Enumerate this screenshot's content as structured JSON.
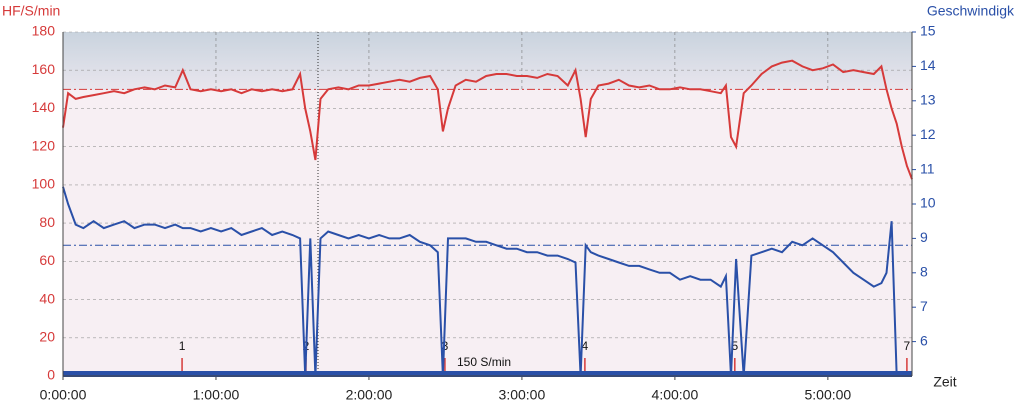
{
  "chart_data": {
    "type": "line",
    "y_label": "HF/S/min",
    "y2_label": "Geschwindigk",
    "x_label": "Zeit",
    "xlim": [
      0,
      333
    ],
    "xticks": [
      {
        "value": 0,
        "label": "0:00:00"
      },
      {
        "value": 60,
        "label": "1:00:00"
      },
      {
        "value": 120,
        "label": "2:00:00"
      },
      {
        "value": 180,
        "label": "3:00:00"
      },
      {
        "value": 240,
        "label": "4:00:00"
      },
      {
        "value": 300,
        "label": "5:00:00"
      }
    ],
    "ylim": [
      0,
      180
    ],
    "yticks": [
      0,
      20,
      40,
      60,
      80,
      100,
      120,
      140,
      160,
      180
    ],
    "y2lim": [
      5,
      15
    ],
    "y2ticks": [
      6,
      7,
      8,
      9,
      10,
      11,
      12,
      13,
      14,
      15
    ],
    "grid": true,
    "x": [
      0,
      2,
      5,
      8,
      12,
      16,
      20,
      24,
      28,
      32,
      36,
      40,
      44,
      47,
      50,
      54,
      58,
      62,
      66,
      70,
      74,
      78,
      82,
      86,
      90,
      93,
      95,
      97,
      99,
      101,
      104,
      108,
      112,
      116,
      120,
      124,
      128,
      132,
      136,
      140,
      144,
      147,
      149,
      151,
      154,
      158,
      162,
      166,
      170,
      174,
      178,
      182,
      186,
      190,
      194,
      198,
      201,
      203,
      205,
      207,
      210,
      214,
      218,
      222,
      226,
      230,
      234,
      238,
      242,
      246,
      250,
      254,
      258,
      260,
      262,
      264,
      267,
      270,
      274,
      278,
      282,
      286,
      290,
      294,
      298,
      302,
      306,
      310,
      314,
      318,
      321,
      323,
      325,
      327,
      329,
      331,
      333
    ],
    "series": [
      {
        "name": "HF",
        "color": "#d63a3a",
        "values": [
          130,
          148,
          145,
          146,
          147,
          148,
          149,
          148,
          150,
          151,
          150,
          152,
          151,
          160,
          150,
          149,
          150,
          149,
          150,
          148,
          150,
          149,
          150,
          149,
          150,
          158,
          140,
          128,
          113,
          145,
          150,
          151,
          150,
          152,
          152,
          153,
          154,
          155,
          154,
          156,
          157,
          150,
          128,
          140,
          152,
          155,
          154,
          157,
          158,
          158,
          157,
          157,
          156,
          158,
          157,
          152,
          160,
          145,
          125,
          145,
          152,
          153,
          155,
          152,
          151,
          152,
          150,
          150,
          151,
          150,
          150,
          149,
          148,
          152,
          125,
          120,
          148,
          152,
          158,
          162,
          164,
          165,
          162,
          160,
          161,
          163,
          159,
          160,
          159,
          158,
          162,
          150,
          140,
          132,
          120,
          110,
          103
        ]
      },
      {
        "name": "Geschwindigkeit",
        "color": "#2a50a8",
        "axis": "y2",
        "values": [
          10.5,
          10,
          9.4,
          9.3,
          9.5,
          9.3,
          9.4,
          9.5,
          9.3,
          9.4,
          9.4,
          9.3,
          9.4,
          9.3,
          9.3,
          9.2,
          9.3,
          9.2,
          9.3,
          9.1,
          9.2,
          9.3,
          9.1,
          9.2,
          9.1,
          9.0,
          5.0,
          9.0,
          5.0,
          9.0,
          9.2,
          9.1,
          9.0,
          9.1,
          9.0,
          9.1,
          9.0,
          9.0,
          9.1,
          8.9,
          8.8,
          8.6,
          5.0,
          9.0,
          9.0,
          9.0,
          8.9,
          8.9,
          8.8,
          8.7,
          8.7,
          8.6,
          8.6,
          8.5,
          8.5,
          8.4,
          8.3,
          5.0,
          8.8,
          8.6,
          8.5,
          8.4,
          8.3,
          8.2,
          8.2,
          8.1,
          8.0,
          8.0,
          7.8,
          7.9,
          7.8,
          7.8,
          7.6,
          7.9,
          5.0,
          8.4,
          5.0,
          8.5,
          8.6,
          8.7,
          8.6,
          8.9,
          8.8,
          9.0,
          8.8,
          8.6,
          8.3,
          8.0,
          7.8,
          7.6,
          7.7,
          8.0,
          9.5,
          5,
          5,
          5,
          5
        ]
      }
    ],
    "hr_reference": 150,
    "speed_reference": 8.8,
    "laps": [
      {
        "x": 46.7,
        "label": "1"
      },
      {
        "x": 95.3,
        "label": "2"
      },
      {
        "x": 149.8,
        "label": "3"
      },
      {
        "x": 204.7,
        "label": "4"
      },
      {
        "x": 263.5,
        "label": "5"
      },
      {
        "x": 331,
        "label": "7"
      }
    ],
    "annotation": "150 S/min"
  }
}
